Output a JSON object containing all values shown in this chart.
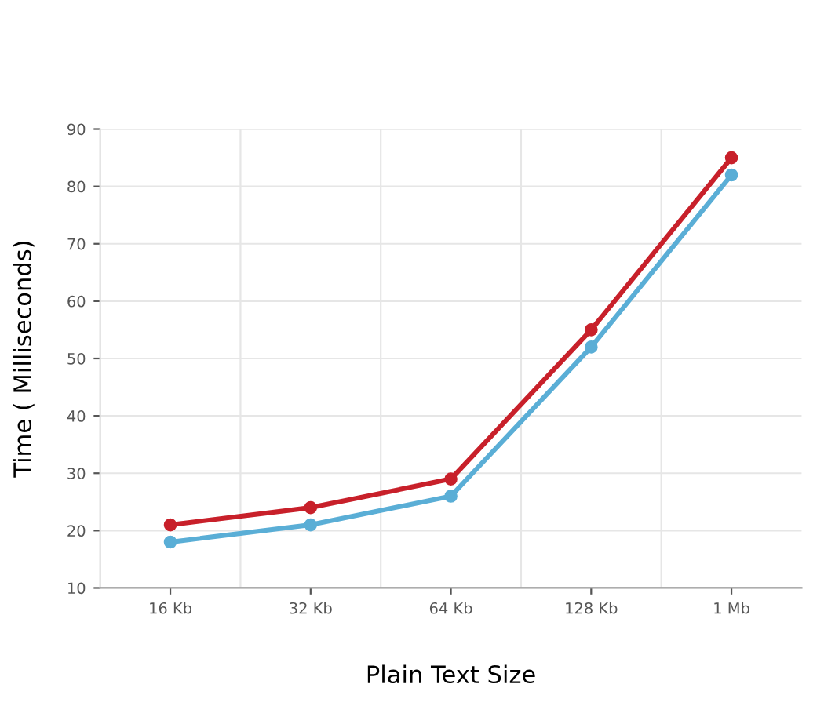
{
  "chart_data": {
    "type": "line",
    "xlabel": "Plain Text Size",
    "ylabel": "Time ( Milliseconds)",
    "categories": [
      "16 Kb",
      "32 Kb",
      "64 Kb",
      "128 Kb",
      "1 Mb"
    ],
    "series": [
      {
        "color": "#c8202a",
        "values": [
          21,
          24,
          29,
          55,
          85
        ]
      },
      {
        "color": "#5aaed6",
        "values": [
          18,
          21,
          26,
          52,
          82
        ]
      }
    ],
    "ylim": [
      10,
      90
    ],
    "yticks": [
      10,
      20,
      30,
      40,
      50,
      60,
      70,
      80,
      90
    ],
    "grid": true,
    "marker": "circle",
    "line_style": "solid"
  }
}
